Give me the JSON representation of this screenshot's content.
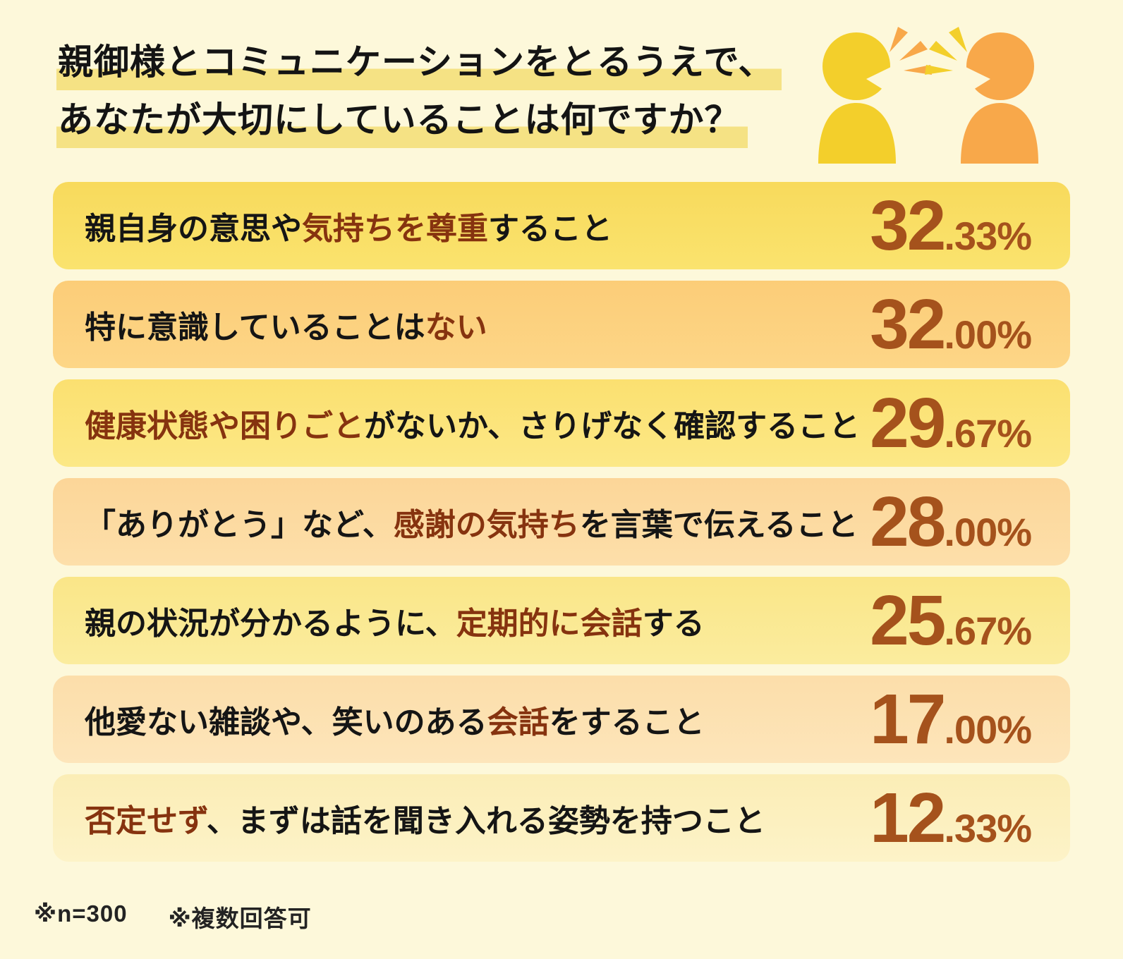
{
  "page": {
    "background_color": "#fdf8da",
    "title_highlight_color": "#f5e284",
    "accent_text_color": "#86330f",
    "value_text_color": "#a5521c"
  },
  "title": {
    "line1": "親御様とコミュニケーションをとるうえで、",
    "line2": "あなたが大切にしていることは何ですか？"
  },
  "icons": {
    "left_person": "talking-person-yellow",
    "right_person": "talking-person-orange",
    "left_person_color": "#f3cf2b",
    "right_person_color": "#f8a84a",
    "left_rays_color": "#f8a84a",
    "right_rays_color": "#f3cf2b"
  },
  "chart_data": {
    "type": "bar",
    "orientation": "horizontal",
    "title": "親御様とコミュニケーションをとるうえで、あなたが大切にしていることは何ですか？",
    "categories": [
      "親自身の意思や気持ちを尊重すること",
      "特に意識していることはない",
      "健康状態や困りごとがないか、さりげなく確認すること",
      "「ありがとう」など、感謝の気持ちを言葉で伝えること",
      "親の状況が分かるように、定期的に会話する",
      "他愛ない雑談や、笑いのある会話をすること",
      "否定せず、まずは話を聞き入れる姿勢を持つこと"
    ],
    "values": [
      32.33,
      32.0,
      29.67,
      28.0,
      25.67,
      17.0,
      12.33
    ],
    "unit": "%",
    "sample_size": 300,
    "notes": [
      "※n=300",
      "※複数回答可"
    ]
  },
  "rows": [
    {
      "segments": [
        {
          "text": "親自身の意思や",
          "accent": false
        },
        {
          "text": "気持ちを尊重",
          "accent": true
        },
        {
          "text": "すること",
          "accent": false
        }
      ],
      "value_int": "32",
      "value_frac": ".33%",
      "bg_top": "#f8da5c",
      "bg_bottom": "#fae36e"
    },
    {
      "segments": [
        {
          "text": "特に意識していることは",
          "accent": false
        },
        {
          "text": "ない",
          "accent": true
        }
      ],
      "value_int": "32",
      "value_frac": ".00%",
      "bg_top": "#fccd78",
      "bg_bottom": "#fdd687"
    },
    {
      "segments": [
        {
          "text": "健康状態や困りごと",
          "accent": true
        },
        {
          "text": "がないか、さりげなく確認すること",
          "accent": false
        }
      ],
      "value_int": "29",
      "value_frac": ".67%",
      "bg_top": "#fbe070",
      "bg_bottom": "#fce886"
    },
    {
      "segments": [
        {
          "text": "「ありがとう」など、",
          "accent": false
        },
        {
          "text": "感謝の気持ち",
          "accent": true
        },
        {
          "text": "を言葉で伝えること",
          "accent": false
        }
      ],
      "value_int": "28",
      "value_frac": ".00%",
      "bg_top": "#fcd698",
      "bg_bottom": "#fddfaa"
    },
    {
      "segments": [
        {
          "text": "親の状況が分かるように、",
          "accent": false
        },
        {
          "text": "定期的に会話",
          "accent": true
        },
        {
          "text": "する",
          "accent": false
        }
      ],
      "value_int": "25",
      "value_frac": ".67%",
      "bg_top": "#fae688",
      "bg_bottom": "#fbec9e"
    },
    {
      "segments": [
        {
          "text": "他愛ない雑談や、笑いのある",
          "accent": false
        },
        {
          "text": "会話",
          "accent": true
        },
        {
          "text": "をすること",
          "accent": false
        }
      ],
      "value_int": "17",
      "value_frac": ".00%",
      "bg_top": "#fcdeaa",
      "bg_bottom": "#fde5ba"
    },
    {
      "segments": [
        {
          "text": "否定せず",
          "accent": true
        },
        {
          "text": "、まずは話を聞き入れる姿勢を持つこと",
          "accent": false
        }
      ],
      "value_int": "12",
      "value_frac": ".33%",
      "bg_top": "#fbedb6",
      "bg_bottom": "#fdf3c8"
    }
  ],
  "footer": {
    "sample_note": "※n=300",
    "multi_note": "※複数回答可"
  }
}
